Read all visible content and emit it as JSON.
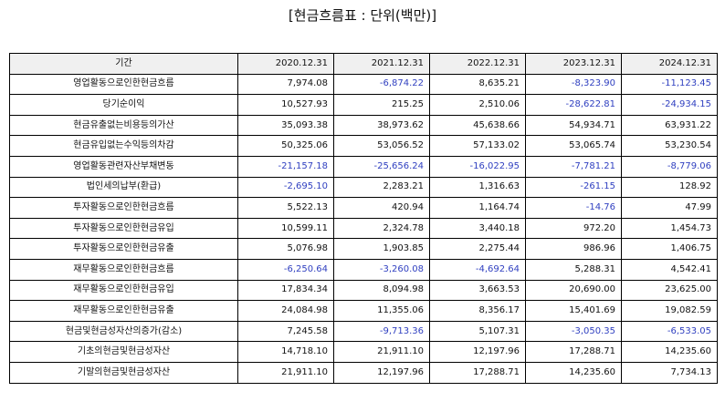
{
  "title": "[현금흐름표 : 단위(백만)]",
  "header": {
    "label": "기간",
    "periods": [
      "2020.12.31",
      "2021.12.31",
      "2022.12.31",
      "2023.12.31",
      "2024.12.31"
    ]
  },
  "rows": [
    {
      "label": "영업활동으로인한현금흐름",
      "values": [
        "7,974.08",
        "-6,874.22",
        "8,635.21",
        "-8,323.90",
        "-11,123.45"
      ]
    },
    {
      "label": "당기순이익",
      "values": [
        "10,527.93",
        "215.25",
        "2,510.06",
        "-28,622.81",
        "-24,934.15"
      ]
    },
    {
      "label": "현금유출없는비용등의가산",
      "values": [
        "35,093.38",
        "38,973.62",
        "45,638.66",
        "54,934.71",
        "63,931.22"
      ]
    },
    {
      "label": "현금유입없는수익등의차감",
      "values": [
        "50,325.06",
        "53,056.52",
        "57,133.02",
        "53,065.74",
        "53,230.54"
      ]
    },
    {
      "label": "영업활동관련자산부채변동",
      "values": [
        "-21,157.18",
        "-25,656.24",
        "-16,022.95",
        "-7,781.21",
        "-8,779.06"
      ]
    },
    {
      "label": "법인세의납부(환급)",
      "values": [
        "-2,695.10",
        "2,283.21",
        "1,316.63",
        "-261.15",
        "128.92"
      ]
    },
    {
      "label": "투자활동으로인한현금흐름",
      "values": [
        "5,522.13",
        "420.94",
        "1,164.74",
        "-14.76",
        "47.99"
      ]
    },
    {
      "label": "투자활동으로인한현금유입",
      "values": [
        "10,599.11",
        "2,324.78",
        "3,440.18",
        "972.20",
        "1,454.73"
      ]
    },
    {
      "label": "투자활동으로인한현금유출",
      "values": [
        "5,076.98",
        "1,903.85",
        "2,275.44",
        "986.96",
        "1,406.75"
      ]
    },
    {
      "label": "재무활동으로인한현금흐름",
      "values": [
        "-6,250.64",
        "-3,260.08",
        "-4,692.64",
        "5,288.31",
        "4,542.41"
      ]
    },
    {
      "label": "재무활동으로인한현금유입",
      "values": [
        "17,834.34",
        "8,094.98",
        "3,663.53",
        "20,690.00",
        "23,625.00"
      ]
    },
    {
      "label": "재무활동으로인한현금유출",
      "values": [
        "24,084.98",
        "11,355.06",
        "8,356.17",
        "15,401.69",
        "19,082.59"
      ]
    },
    {
      "label": "현금및현금성자산의증가(감소)",
      "values": [
        "7,245.58",
        "-9,713.36",
        "5,107.31",
        "-3,050.35",
        "-6,533.05"
      ]
    },
    {
      "label": "기초의현금및현금성자산",
      "values": [
        "14,718.10",
        "21,911.10",
        "12,197.96",
        "17,288.71",
        "14,235.60"
      ]
    },
    {
      "label": "기말의현금및현금성자산",
      "values": [
        "21,911.10",
        "12,197.96",
        "17,288.71",
        "14,235.60",
        "7,734.13"
      ]
    }
  ],
  "colors": {
    "negative_text": "#2f3fc0",
    "header_background": "#f0f0f0",
    "border": "#000000"
  }
}
